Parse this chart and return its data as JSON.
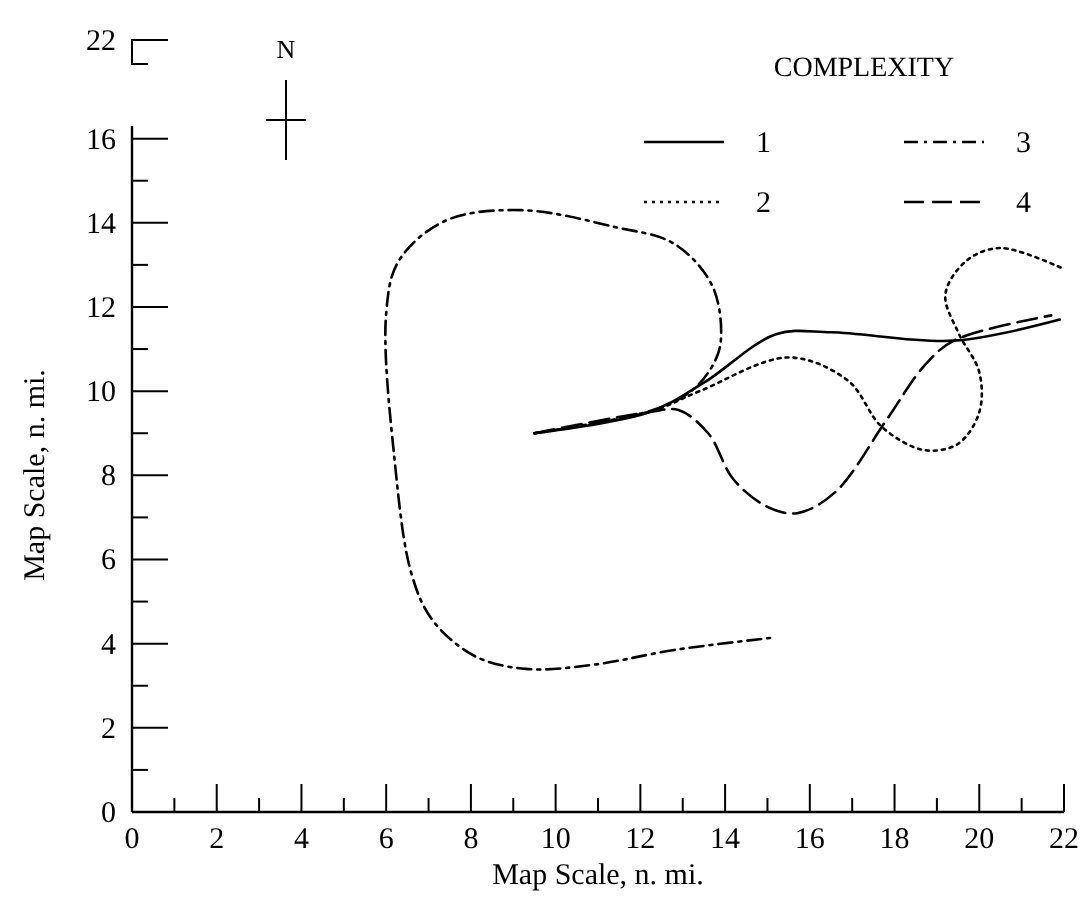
{
  "chart_data": {
    "type": "line",
    "xlabel": "Map Scale, n. mi.",
    "ylabel": "Map Scale, n. mi.",
    "legend_title": "COMPLEXITY",
    "annotations": [
      "N",
      "22"
    ],
    "xlim": [
      0,
      22
    ],
    "ylim": [
      0,
      16.3
    ],
    "xticks": [
      0,
      {
        "value": 1,
        "label": null
      },
      2,
      {
        "value": 3,
        "label": null
      },
      4,
      {
        "value": 5,
        "label": null
      },
      6,
      {
        "value": 7,
        "label": null
      },
      8,
      {
        "value": 9,
        "label": null
      },
      10,
      {
        "value": 11,
        "label": null
      },
      12,
      {
        "value": 13,
        "label": null
      },
      14,
      {
        "value": 15,
        "label": null
      },
      16,
      {
        "value": 17,
        "label": null
      },
      18,
      {
        "value": 19,
        "label": null
      },
      20,
      {
        "value": 21,
        "label": null
      },
      22
    ],
    "yticks": [
      0,
      {
        "value": 1,
        "label": null
      },
      2,
      {
        "value": 3,
        "label": null
      },
      4,
      {
        "value": 5,
        "label": null
      },
      6,
      {
        "value": 7,
        "label": null
      },
      8,
      {
        "value": 9,
        "label": null
      },
      10,
      {
        "value": 11,
        "label": null
      },
      12,
      {
        "value": 13,
        "label": null
      },
      14,
      {
        "value": 15,
        "label": null
      },
      16
    ],
    "grid": false,
    "legend": "top right",
    "series": [
      {
        "name": "1",
        "color": "#000000",
        "line_style": "solid",
        "x": [
          9.5,
          12.2,
          13.5,
          15.2,
          16.5,
          19.4,
          21.9
        ],
        "values": [
          9.0,
          9.5,
          10.2,
          11.35,
          11.4,
          11.2,
          11.7
        ]
      },
      {
        "name": "2",
        "color": "#000000",
        "line_style": "dotted",
        "x": [
          9.5,
          12.2,
          13.4,
          15.5,
          16.9,
          17.7,
          18.7,
          19.5,
          20.0,
          20.0,
          19.5,
          19.2,
          19.7,
          20.5,
          22.0
        ],
        "values": [
          9.0,
          9.5,
          10.0,
          10.8,
          10.25,
          9.15,
          8.6,
          8.75,
          9.5,
          10.45,
          11.4,
          12.3,
          13.1,
          13.4,
          12.9
        ]
      },
      {
        "name": "3",
        "color": "#000000",
        "line_style": "dashdot",
        "x": [
          9.5,
          12.3,
          13.2,
          13.7,
          13.9,
          13.7,
          12.8,
          11.4,
          9.2,
          7.4,
          6.3,
          6.0,
          6.2,
          6.6,
          7.1,
          8.1,
          9.3,
          10.9,
          12.8,
          15.2
        ],
        "values": [
          9.0,
          9.55,
          10.0,
          10.6,
          11.2,
          12.5,
          13.5,
          13.9,
          14.3,
          14.05,
          13.1,
          11.85,
          8.35,
          5.65,
          4.55,
          3.7,
          3.4,
          3.5,
          3.85,
          4.15
        ]
      },
      {
        "name": "4",
        "color": "#000000",
        "line_style": "dashed",
        "x": [
          9.5,
          12.2,
          12.9,
          13.6,
          14.2,
          15.0,
          15.7,
          16.6,
          17.8,
          18.7,
          19.4,
          21.7
        ],
        "values": [
          9.0,
          9.5,
          9.55,
          9.0,
          7.9,
          7.25,
          7.1,
          7.6,
          9.3,
          10.6,
          11.2,
          11.8
        ]
      }
    ]
  }
}
